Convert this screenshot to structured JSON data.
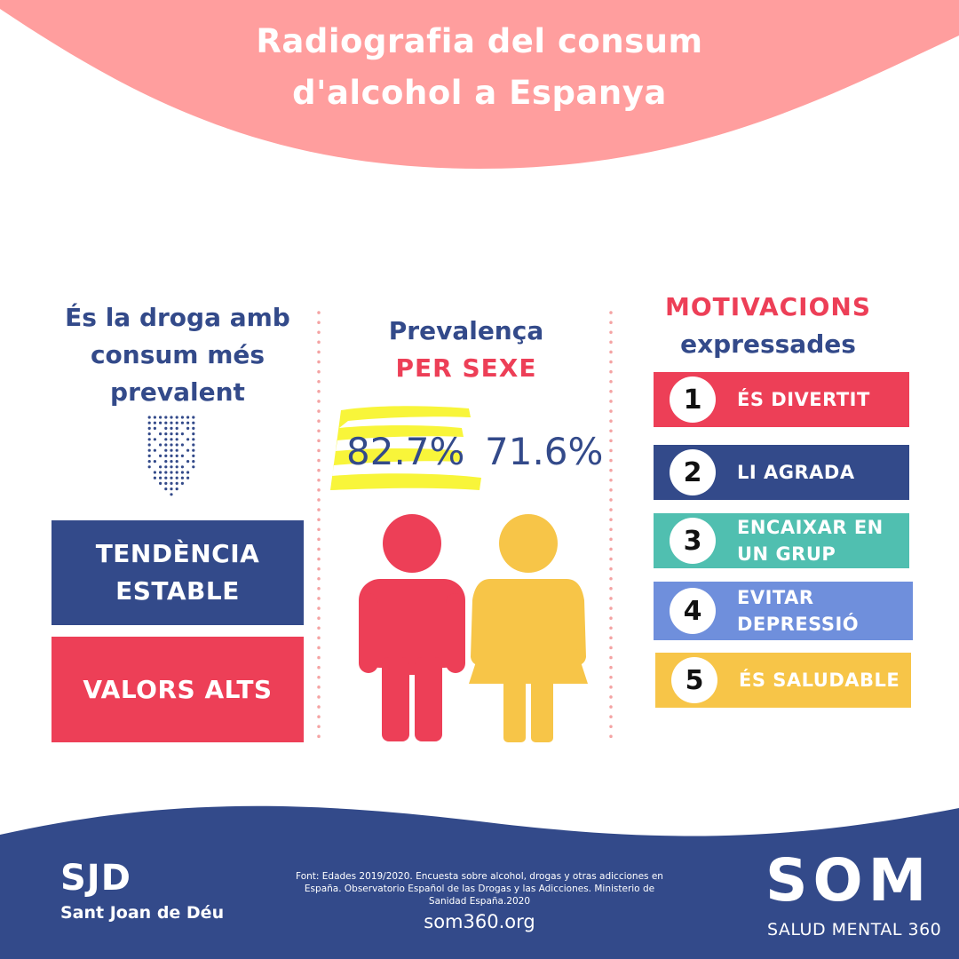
{
  "title": {
    "line1": "Radiografia del consum",
    "line2": "d'alcohol a Espanya"
  },
  "left": {
    "heading": [
      "És la droga amb",
      "consum més",
      "prevalent"
    ],
    "trend_label": [
      "TENDÈNCIA",
      "ESTABLE"
    ],
    "values_label": "VALORS ALTS"
  },
  "middle": {
    "heading1": "Prevalença",
    "heading2": "PER SEXE",
    "male_value": "82.7%",
    "female_value": "71.6%"
  },
  "right": {
    "heading1": "MOTIVACIONS",
    "heading2": "expressades",
    "items": [
      {
        "number": "1",
        "label": "ÉS DIVERTIT",
        "color": "#ed3f57"
      },
      {
        "number": "2",
        "label": "LI AGRADA",
        "color": "#334a8a"
      },
      {
        "number": "3",
        "label": "ENCAIXAR EN UN GRUP",
        "color": "#50bfb0"
      },
      {
        "number": "4",
        "label": "EVITAR DEPRESSIÓ",
        "color": "#6f8fdc"
      },
      {
        "number": "5",
        "label": "ÉS SALUDABLE",
        "color": "#f7c548"
      }
    ]
  },
  "footer": {
    "sjd_logo": "SJD",
    "sjd_name": "Sant Joan de Déu",
    "source": "Font: Edades 2019/2020. Encuesta sobre alcohol, drogas y otras adicciones en España. Observatorio Español de las Drogas y las Adicciones. Ministerio de Sanidad España.2020",
    "site": "som360.org",
    "som_logo": "SOM",
    "som_tagline": "SALUD MENTAL 360"
  },
  "colors": {
    "header": "#ff9e9e",
    "navy": "#334a8a",
    "red": "#ed3f57",
    "yellow": "#f7c548",
    "highlight": "#f8f53a",
    "divider": "#f4a3a3"
  },
  "icons": [
    "alcohol-glass-dots-icon",
    "male-figure-icon",
    "female-figure-icon"
  ]
}
